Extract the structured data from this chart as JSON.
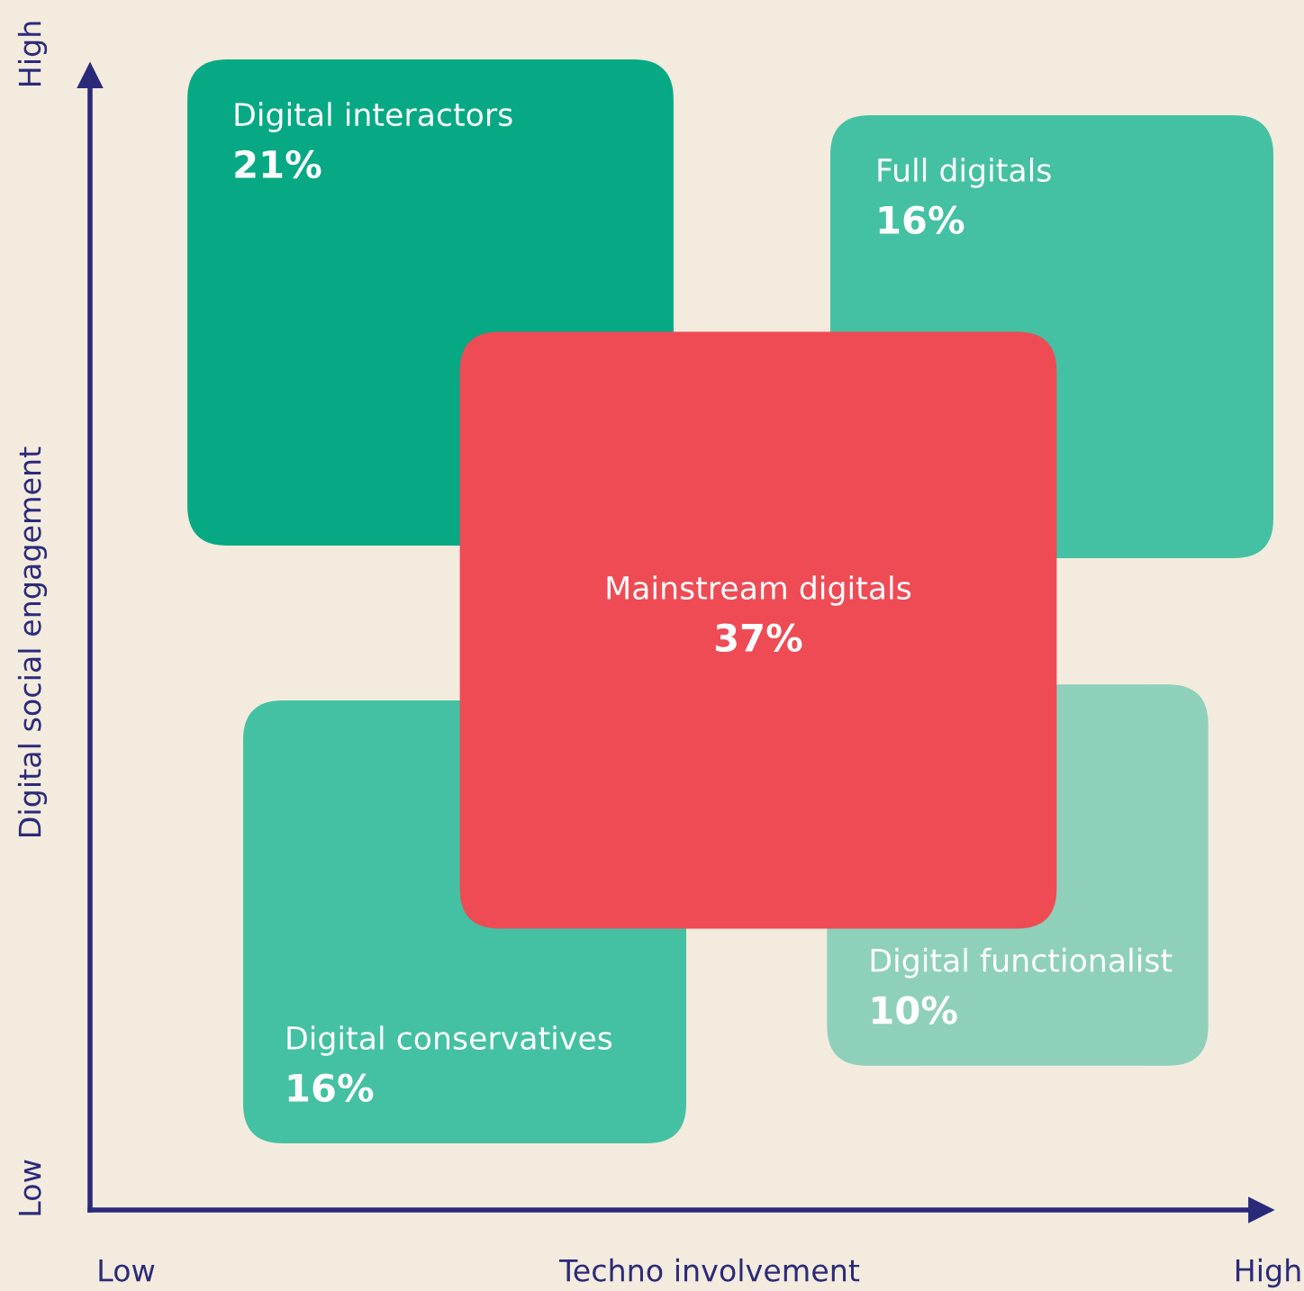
{
  "chart_data": {
    "type": "other",
    "xlabel": "Techno involvement",
    "ylabel": "Digital social engagement",
    "annotations": [
      "Low",
      "High",
      "Low",
      "High"
    ],
    "categories": [
      "Digital interactors",
      "Full digitals",
      "Digital conservatives",
      "Digital functionalist",
      "Mainstream digitals"
    ],
    "values": [
      21,
      16,
      16,
      10,
      37
    ],
    "value_labels": [
      "21%",
      "16%",
      "16%",
      "10%",
      "37%"
    ],
    "colors": [
      "#06a984",
      "#44c1a2",
      "#44c1a2",
      "#8fd0bb",
      "#ef4b55"
    ]
  }
}
